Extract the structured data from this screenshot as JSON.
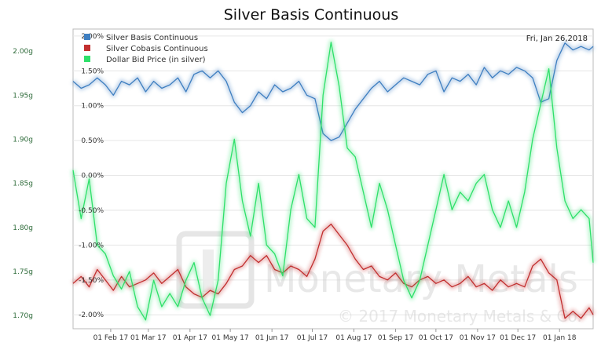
{
  "chart_data": {
    "type": "line",
    "title": "Silver Basis Continuous",
    "date_label": "Fri, Jan 26,2018",
    "watermark": {
      "name": "Monetary Metals",
      "copyright": "© 2017 Monetary Metals & Co."
    },
    "x_ticks": [
      "01 Feb 17",
      "01 Mar 17",
      "01 Apr 17",
      "01 May 17",
      "01 Jun 17",
      "01 Jul 17",
      "01 Aug 17",
      "01 Sep 17",
      "01 Oct 17",
      "01 Nov 17",
      "01 Dec 17",
      "01 Jan 18"
    ],
    "x_range": [
      "2017-01-04",
      "2018-01-26"
    ],
    "y_right": {
      "ticks": [
        "2.00%",
        "1.50%",
        "1.00%",
        "0.50%",
        "0.00%",
        "-0.50%",
        "-1.00%",
        "-1.50%",
        "-2.00%"
      ],
      "ylim": [
        -2.2,
        2.1
      ]
    },
    "y_left": {
      "ticks": [
        "2.00g",
        "1.95g",
        "1.90g",
        "1.85g",
        "1.80g",
        "1.75g",
        "1.70g"
      ],
      "ylim": [
        1.685,
        2.025
      ]
    },
    "legend": {
      "placement": "top-left"
    },
    "series": [
      {
        "name": "Silver Basis Continuous",
        "color": "#3f7fc1",
        "axis": "right",
        "x": [
          "2017-01-04",
          "2017-01-10",
          "2017-01-16",
          "2017-01-22",
          "2017-01-28",
          "2017-02-03",
          "2017-02-09",
          "2017-02-15",
          "2017-02-21",
          "2017-02-27",
          "2017-03-05",
          "2017-03-11",
          "2017-03-17",
          "2017-03-23",
          "2017-03-29",
          "2017-04-04",
          "2017-04-10",
          "2017-04-16",
          "2017-04-22",
          "2017-04-28",
          "2017-05-04",
          "2017-05-10",
          "2017-05-16",
          "2017-05-22",
          "2017-05-28",
          "2017-06-03",
          "2017-06-09",
          "2017-06-15",
          "2017-06-21",
          "2017-06-27",
          "2017-07-03",
          "2017-07-09",
          "2017-07-15",
          "2017-07-21",
          "2017-07-27",
          "2017-08-02",
          "2017-08-08",
          "2017-08-14",
          "2017-08-20",
          "2017-08-26",
          "2017-09-01",
          "2017-09-07",
          "2017-09-13",
          "2017-09-19",
          "2017-09-25",
          "2017-10-01",
          "2017-10-07",
          "2017-10-13",
          "2017-10-19",
          "2017-10-25",
          "2017-10-31",
          "2017-11-06",
          "2017-11-12",
          "2017-11-18",
          "2017-11-24",
          "2017-11-30",
          "2017-12-06",
          "2017-12-12",
          "2017-12-18",
          "2017-12-24",
          "2017-12-30",
          "2018-01-05",
          "2018-01-11",
          "2018-01-17",
          "2018-01-23",
          "2018-01-26"
        ],
        "values": [
          1.35,
          1.25,
          1.3,
          1.4,
          1.3,
          1.15,
          1.35,
          1.3,
          1.4,
          1.2,
          1.35,
          1.25,
          1.3,
          1.4,
          1.2,
          1.45,
          1.5,
          1.4,
          1.5,
          1.35,
          1.05,
          0.9,
          1.0,
          1.2,
          1.1,
          1.3,
          1.2,
          1.25,
          1.35,
          1.15,
          1.1,
          0.6,
          0.5,
          0.55,
          0.75,
          0.95,
          1.1,
          1.25,
          1.35,
          1.2,
          1.3,
          1.4,
          1.35,
          1.3,
          1.45,
          1.5,
          1.2,
          1.4,
          1.35,
          1.45,
          1.3,
          1.55,
          1.4,
          1.5,
          1.45,
          1.55,
          1.5,
          1.4,
          1.05,
          1.1,
          1.65,
          1.9,
          1.8,
          1.85,
          1.8,
          1.85
        ]
      },
      {
        "name": "Silver Cobasis Continuous",
        "color": "#c22f2f",
        "axis": "right",
        "x": [
          "2017-01-04",
          "2017-01-10",
          "2017-01-16",
          "2017-01-22",
          "2017-01-28",
          "2017-02-03",
          "2017-02-09",
          "2017-02-15",
          "2017-02-21",
          "2017-02-27",
          "2017-03-05",
          "2017-03-11",
          "2017-03-17",
          "2017-03-23",
          "2017-03-29",
          "2017-04-04",
          "2017-04-10",
          "2017-04-16",
          "2017-04-22",
          "2017-04-28",
          "2017-05-04",
          "2017-05-10",
          "2017-05-16",
          "2017-05-22",
          "2017-05-28",
          "2017-06-03",
          "2017-06-09",
          "2017-06-15",
          "2017-06-21",
          "2017-06-27",
          "2017-07-03",
          "2017-07-09",
          "2017-07-15",
          "2017-07-21",
          "2017-07-27",
          "2017-08-02",
          "2017-08-08",
          "2017-08-14",
          "2017-08-20",
          "2017-08-26",
          "2017-09-01",
          "2017-09-07",
          "2017-09-13",
          "2017-09-19",
          "2017-09-25",
          "2017-10-01",
          "2017-10-07",
          "2017-10-13",
          "2017-10-19",
          "2017-10-25",
          "2017-10-31",
          "2017-11-06",
          "2017-11-12",
          "2017-11-18",
          "2017-11-24",
          "2017-11-30",
          "2017-12-06",
          "2017-12-12",
          "2017-12-18",
          "2017-12-24",
          "2017-12-30",
          "2018-01-05",
          "2018-01-11",
          "2018-01-17",
          "2018-01-23",
          "2018-01-26"
        ],
        "values": [
          -1.55,
          -1.45,
          -1.6,
          -1.35,
          -1.5,
          -1.65,
          -1.45,
          -1.6,
          -1.55,
          -1.5,
          -1.4,
          -1.55,
          -1.45,
          -1.35,
          -1.6,
          -1.7,
          -1.75,
          -1.65,
          -1.7,
          -1.55,
          -1.35,
          -1.3,
          -1.15,
          -1.25,
          -1.15,
          -1.35,
          -1.4,
          -1.3,
          -1.35,
          -1.45,
          -1.2,
          -0.8,
          -0.7,
          -0.85,
          -1.0,
          -1.2,
          -1.35,
          -1.3,
          -1.45,
          -1.5,
          -1.4,
          -1.55,
          -1.6,
          -1.5,
          -1.45,
          -1.55,
          -1.5,
          -1.6,
          -1.55,
          -1.45,
          -1.6,
          -1.55,
          -1.65,
          -1.5,
          -1.6,
          -1.55,
          -1.6,
          -1.3,
          -1.2,
          -1.4,
          -1.5,
          -2.05,
          -1.95,
          -2.05,
          -1.9,
          -2.0
        ]
      },
      {
        "name": "Dollar Bid Price (in silver)",
        "color": "#2ee06a",
        "axis": "left",
        "x": [
          "2017-01-04",
          "2017-01-10",
          "2017-01-16",
          "2017-01-22",
          "2017-01-28",
          "2017-02-03",
          "2017-02-09",
          "2017-02-15",
          "2017-02-21",
          "2017-02-27",
          "2017-03-05",
          "2017-03-11",
          "2017-03-17",
          "2017-03-23",
          "2017-03-29",
          "2017-04-04",
          "2017-04-10",
          "2017-04-16",
          "2017-04-22",
          "2017-04-28",
          "2017-05-04",
          "2017-05-10",
          "2017-05-16",
          "2017-05-22",
          "2017-05-28",
          "2017-06-03",
          "2017-06-09",
          "2017-06-15",
          "2017-06-21",
          "2017-06-27",
          "2017-07-03",
          "2017-07-09",
          "2017-07-15",
          "2017-07-21",
          "2017-07-27",
          "2017-08-02",
          "2017-08-08",
          "2017-08-14",
          "2017-08-20",
          "2017-08-26",
          "2017-09-01",
          "2017-09-07",
          "2017-09-13",
          "2017-09-19",
          "2017-09-25",
          "2017-10-01",
          "2017-10-07",
          "2017-10-13",
          "2017-10-19",
          "2017-10-25",
          "2017-10-31",
          "2017-11-06",
          "2017-11-12",
          "2017-11-18",
          "2017-11-24",
          "2017-11-30",
          "2017-12-06",
          "2017-12-12",
          "2017-12-18",
          "2017-12-24",
          "2017-12-30",
          "2018-01-05",
          "2018-01-11",
          "2018-01-17",
          "2018-01-23",
          "2018-01-26"
        ],
        "values": [
          1.865,
          1.81,
          1.855,
          1.78,
          1.77,
          1.745,
          1.73,
          1.75,
          1.71,
          1.695,
          1.74,
          1.71,
          1.725,
          1.71,
          1.74,
          1.76,
          1.72,
          1.7,
          1.74,
          1.85,
          1.9,
          1.83,
          1.79,
          1.85,
          1.78,
          1.77,
          1.745,
          1.82,
          1.86,
          1.81,
          1.8,
          1.95,
          2.01,
          1.96,
          1.89,
          1.88,
          1.84,
          1.8,
          1.85,
          1.82,
          1.78,
          1.74,
          1.72,
          1.74,
          1.78,
          1.82,
          1.86,
          1.82,
          1.84,
          1.83,
          1.85,
          1.86,
          1.82,
          1.8,
          1.83,
          1.8,
          1.84,
          1.9,
          1.94,
          1.98,
          1.89,
          1.83,
          1.81,
          1.82,
          1.81,
          1.76
        ]
      }
    ]
  }
}
